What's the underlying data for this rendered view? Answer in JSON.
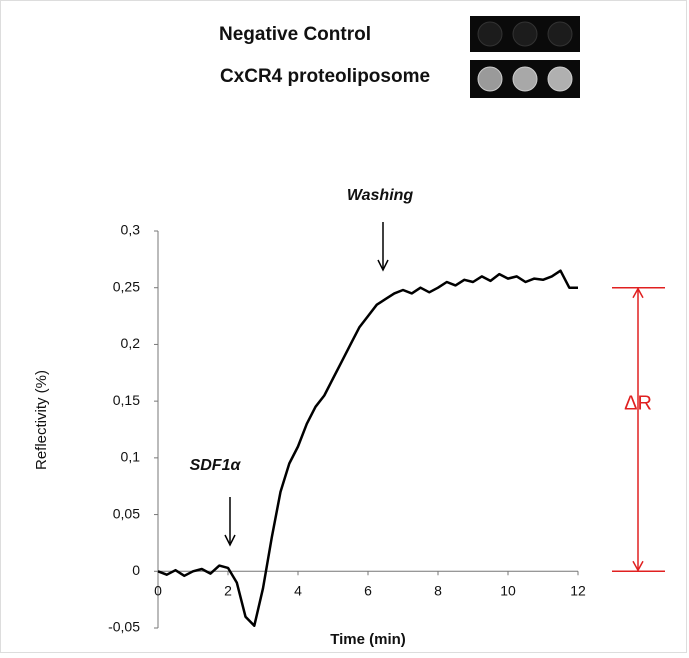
{
  "chart_data": {
    "type": "line",
    "x_label": "Time (min)",
    "y_label": "Reflectivity (%)",
    "legend_images": [
      "Negative Control",
      "CxCR4 proteoliposome"
    ],
    "annotations": [
      "SDF1α",
      "Washing"
    ],
    "delta_r": {
      "label": "ΔR",
      "from": 0,
      "to": 0.25,
      "color": "#e02020"
    },
    "xlim": [
      0,
      12
    ],
    "xticks": [
      0,
      2,
      4,
      6,
      8,
      10,
      12
    ],
    "ylim": [
      -0.05,
      0.3
    ],
    "yticks": [
      {
        "value": -0.05,
        "label": "-0,05"
      },
      0,
      {
        "value": 0.05,
        "label": "0,05"
      },
      {
        "value": 0.1,
        "label": "0,1"
      },
      {
        "value": 0.15,
        "label": "0,15"
      },
      {
        "value": 0.2,
        "label": "0,2"
      },
      {
        "value": 0.25,
        "label": "0,25"
      },
      {
        "value": 0.3,
        "label": "0,3"
      }
    ],
    "series": [
      {
        "color": "#000000",
        "x": [
          0,
          0.25,
          0.5,
          0.75,
          1,
          1.25,
          1.5,
          1.75,
          2,
          2.25,
          2.5,
          2.75,
          3,
          3.25,
          3.5,
          3.75,
          4,
          4.25,
          4.5,
          4.75,
          5,
          5.25,
          5.5,
          5.75,
          6,
          6.25,
          6.5,
          6.75,
          7,
          7.25,
          7.5,
          7.75,
          8,
          8.25,
          8.5,
          8.75,
          9,
          9.25,
          9.5,
          9.75,
          10,
          10.25,
          10.5,
          10.75,
          11,
          11.25,
          11.5,
          11.75,
          12
        ],
        "values": [
          0,
          -0.003,
          0.001,
          -0.004,
          0,
          0.002,
          -0.002,
          0.005,
          0.003,
          -0.01,
          -0.04,
          -0.048,
          -0.015,
          0.03,
          0.07,
          0.095,
          0.11,
          0.13,
          0.145,
          0.155,
          0.17,
          0.185,
          0.2,
          0.215,
          0.225,
          0.235,
          0.24,
          0.245,
          0.248,
          0.245,
          0.25,
          0.246,
          0.25,
          0.255,
          0.252,
          0.257,
          0.255,
          0.26,
          0.256,
          0.262,
          0.258,
          0.26,
          0.255,
          0.258,
          0.257,
          0.26,
          0.265,
          0.25,
          0.25
        ]
      }
    ]
  }
}
